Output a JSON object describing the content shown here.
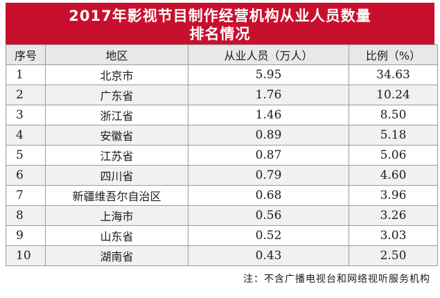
{
  "title": {
    "line1": "2017年影视节目制作经营机构从业人员数量",
    "line2": "排名情况"
  },
  "columns": {
    "no": "序号",
    "region": "地区",
    "staff": "从业人员（万人）",
    "ratio": "比例（%）"
  },
  "rows": [
    {
      "no": "1",
      "region": "北京市",
      "staff": "5.95",
      "ratio": "34.63"
    },
    {
      "no": "2",
      "region": "广东省",
      "staff": "1.76",
      "ratio": "10.24"
    },
    {
      "no": "3",
      "region": "浙江省",
      "staff": "1.46",
      "ratio": "8.50"
    },
    {
      "no": "4",
      "region": "安徽省",
      "staff": "0.89",
      "ratio": "5.18"
    },
    {
      "no": "5",
      "region": "江苏省",
      "staff": "0.87",
      "ratio": "5.06"
    },
    {
      "no": "6",
      "region": "四川省",
      "staff": "0.79",
      "ratio": "4.60"
    },
    {
      "no": "7",
      "region": "新疆维吾尔自治区",
      "staff": "0.68",
      "ratio": "3.96"
    },
    {
      "no": "8",
      "region": "上海市",
      "staff": "0.56",
      "ratio": "3.26"
    },
    {
      "no": "9",
      "region": "山东省",
      "staff": "0.52",
      "ratio": "3.03"
    },
    {
      "no": "10",
      "region": "湖南省",
      "staff": "0.43",
      "ratio": "2.50"
    }
  ],
  "note": "注：不含广播电视台和网络视听服务机构",
  "colors": {
    "title_bg": "#c8102e",
    "header_bg": "#e8e8e8",
    "stripe_bg": "#f1f1f1"
  }
}
